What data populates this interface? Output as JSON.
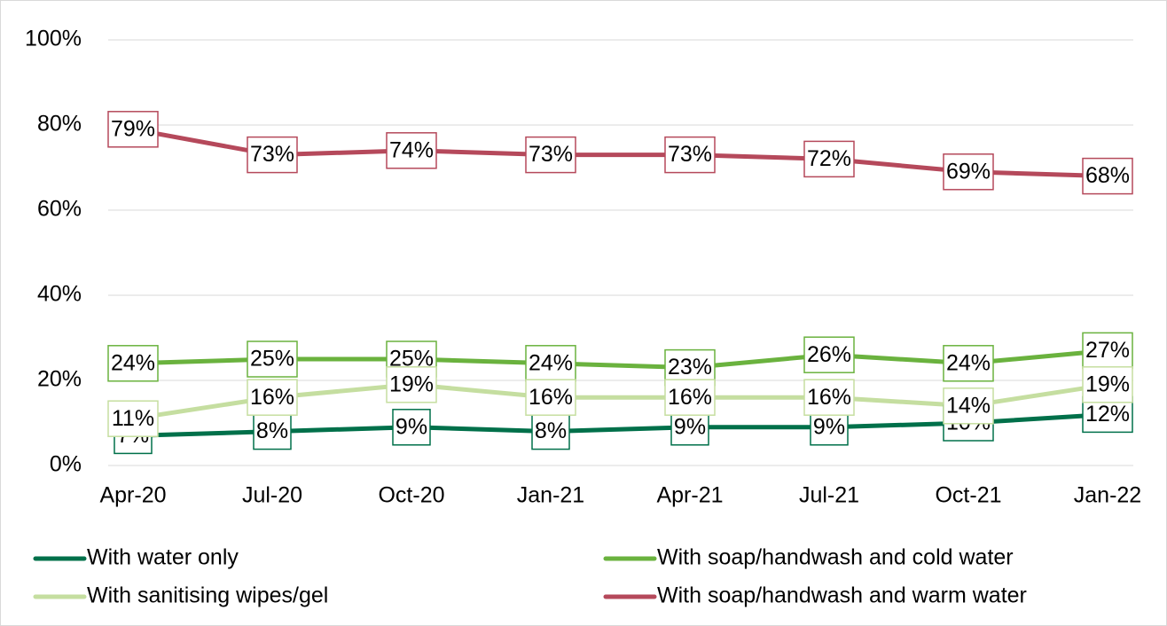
{
  "chart_data": {
    "type": "line",
    "categories": [
      "Apr-20",
      "Jul-20",
      "Oct-20",
      "Jan-21",
      "Apr-21",
      "Jul-21",
      "Oct-21",
      "Jan-22"
    ],
    "series": [
      {
        "name": "With water only",
        "color": "#00704a",
        "values": [
          7,
          8,
          9,
          8,
          9,
          9,
          10,
          12
        ],
        "value_labels": [
          "7%",
          "8%",
          "9%",
          "8%",
          "9%",
          "9%",
          "10%",
          "12%"
        ]
      },
      {
        "name": "With soap/handwash and cold water",
        "color": "#6ab23e",
        "values": [
          24,
          25,
          25,
          24,
          23,
          26,
          24,
          27
        ],
        "value_labels": [
          "24%",
          "25%",
          "25%",
          "24%",
          "23%",
          "26%",
          "24%",
          "27%"
        ]
      },
      {
        "name": "With sanitising wipes/gel",
        "color": "#c5dea0",
        "values": [
          11,
          16,
          19,
          16,
          16,
          16,
          14,
          19
        ],
        "value_labels": [
          "11%",
          "16%",
          "19%",
          "16%",
          "16%",
          "16%",
          "14%",
          "19%"
        ]
      },
      {
        "name": "With soap/handwash and warm water",
        "color": "#b5495b",
        "values": [
          79,
          73,
          74,
          73,
          73,
          72,
          69,
          68
        ],
        "value_labels": [
          "79%",
          "73%",
          "74%",
          "73%",
          "73%",
          "72%",
          "69%",
          "68%"
        ]
      }
    ],
    "ylim": [
      0,
      100
    ],
    "yticks": [
      {
        "value": 0,
        "label": "0%"
      },
      {
        "value": 20,
        "label": "20%"
      },
      {
        "value": 40,
        "label": "40%"
      },
      {
        "value": 60,
        "label": "60%"
      },
      {
        "value": 80,
        "label": "80%"
      },
      {
        "value": 100,
        "label": "100%"
      }
    ],
    "grid": true,
    "legend": "bottom"
  }
}
